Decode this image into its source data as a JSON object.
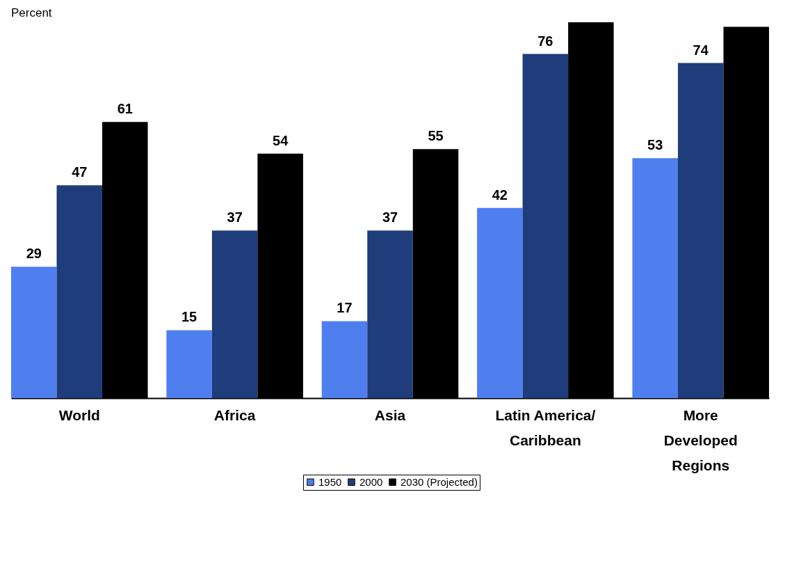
{
  "chart_data": {
    "type": "bar",
    "title": "Percent",
    "categories": [
      "World",
      "Africa",
      "Asia",
      "Latin America/\nCaribbean",
      "More\nDeveloped\nRegions"
    ],
    "series": [
      {
        "name": "1950",
        "color": "#4f7fef",
        "values": [
          29,
          15,
          17,
          42,
          53
        ],
        "value_labels": [
          "29",
          "15",
          "17",
          "42",
          "53"
        ]
      },
      {
        "name": "2000",
        "color": "#1f3d7a",
        "values": [
          47,
          37,
          37,
          76,
          74
        ],
        "value_labels": [
          "47",
          "37",
          "37",
          "76",
          "74"
        ]
      },
      {
        "name": "2030 (Projected)",
        "color": "#000000",
        "values": [
          61,
          54,
          55,
          83,
          82
        ],
        "value_labels": [
          "61",
          "54",
          "55",
          null,
          null
        ]
      }
    ],
    "legend": "bottom"
  }
}
